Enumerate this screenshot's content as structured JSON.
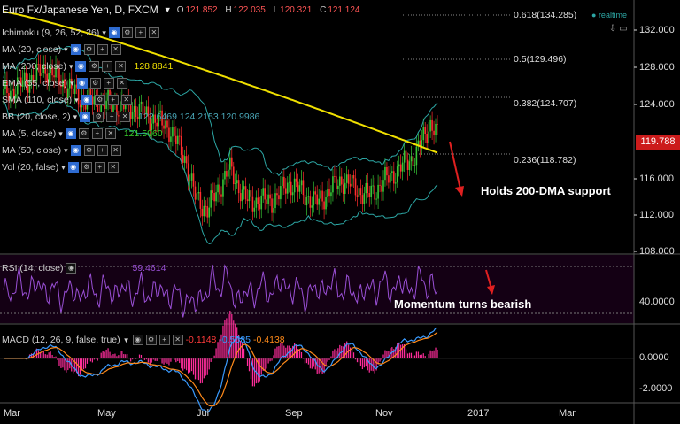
{
  "header": {
    "symbol": "Euro Fx/Japanese Yen, D, FXCM",
    "open_label": "O",
    "open": "121.852",
    "high_label": "H",
    "high": "122.035",
    "low_label": "L",
    "low": "120.321",
    "close_label": "C",
    "close": "121.124",
    "realtime": "realtime"
  },
  "indicators": [
    {
      "label": "Ichimoku (9, 26, 52, 26)"
    },
    {
      "label": "MA (20, close)"
    },
    {
      "label": "MA (200, close)",
      "value": "128.8841",
      "value_color": "#f0e000"
    },
    {
      "label": "EMA (55, close)"
    },
    {
      "label": "SMA (110, close)"
    },
    {
      "label": "BB (20, close, 2)",
      "value": "122.6469  124.2153  120.9986",
      "value_color": "#4aa7b8"
    },
    {
      "label": "MA (5, close)",
      "value": "121.5960",
      "value_color": "#39d12c"
    },
    {
      "label": "MA (50, close)"
    },
    {
      "label": "Vol (20, false)"
    }
  ],
  "fib_levels": [
    {
      "label": "0.618(134.285)"
    },
    {
      "label": "0.5(129.496)"
    },
    {
      "label": "0.382(124.707)"
    },
    {
      "label": "0.236(118.782)"
    }
  ],
  "price_axis": [
    "132.000",
    "128.000",
    "124.000",
    "116.000",
    "112.000",
    "108.000"
  ],
  "current_price": "119.788",
  "rsi": {
    "label": "RSI (14, close)",
    "value": "59.4614",
    "axis": "40.0000",
    "annotation": "Momentum turns bearish"
  },
  "macd": {
    "label": "MACD (12, 26, 9, false, true)",
    "v1": "-0.1148",
    "v2": "-0.5585",
    "v3": "-0.4138",
    "axis": [
      "0.0000",
      "-2.0000"
    ]
  },
  "annotation_main": "Holds 200-DMA support",
  "dates": [
    "Mar",
    "May",
    "Jul",
    "Sep",
    "Nov",
    "2017",
    "Mar"
  ],
  "colors": {
    "up": "#37c837",
    "down": "#ff2d2d",
    "ma200": "#f0e000",
    "bb": "#2ca6a4",
    "macd": "#3a9bff",
    "signal": "#ff8a1a",
    "hist": "#ff2d9b",
    "rsi": "#9a4fd6",
    "arrow": "#e02020"
  }
}
